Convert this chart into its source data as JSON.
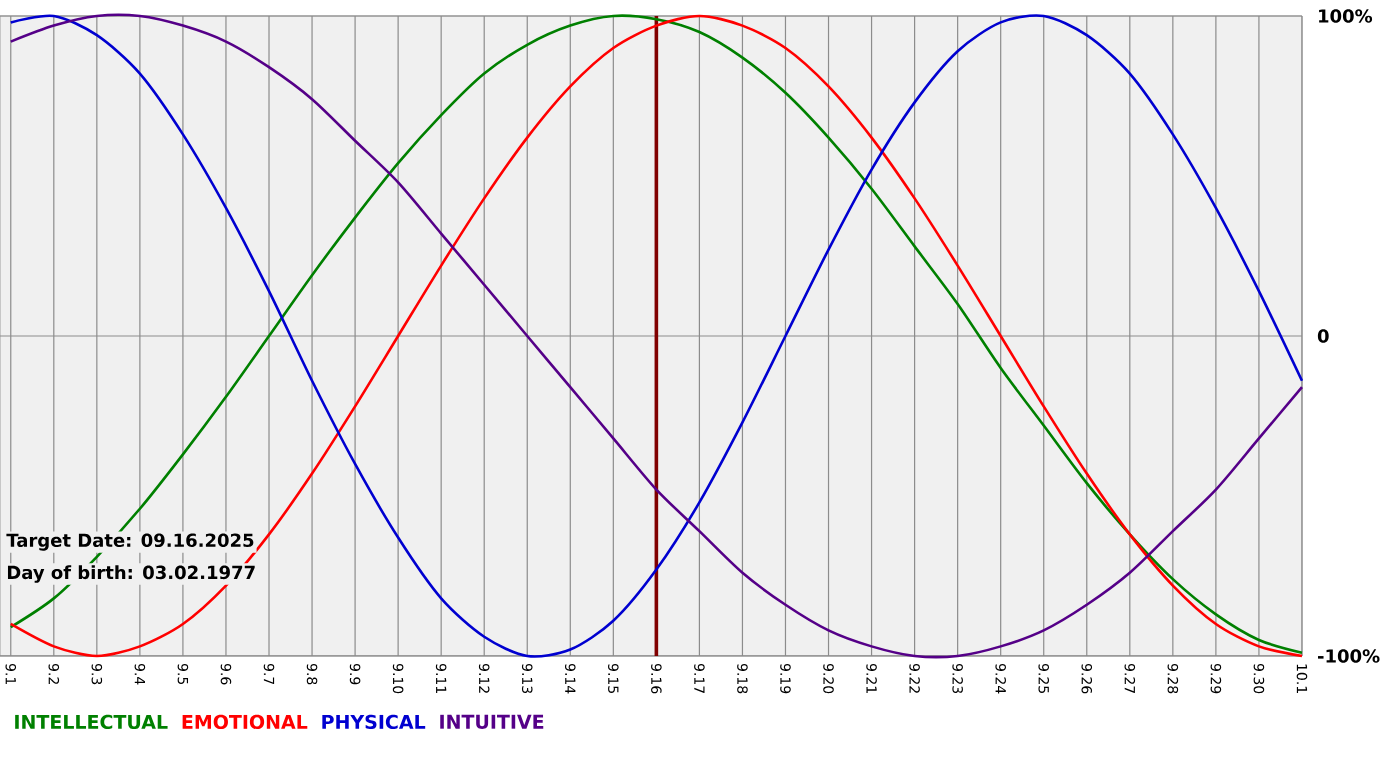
{
  "chart_data": {
    "type": "line",
    "categories": [
      "9.1",
      "9.2",
      "9.3",
      "9.4",
      "9.5",
      "9.6",
      "9.7",
      "9.8",
      "9.9",
      "9.10",
      "9.11",
      "9.12",
      "9.13",
      "9.14",
      "9.15",
      "9.16",
      "9.17",
      "9.18",
      "9.19",
      "9.20",
      "9.21",
      "9.22",
      "9.23",
      "9.24",
      "9.25",
      "9.26",
      "9.27",
      "9.28",
      "9.29",
      "9.30",
      "10.1"
    ],
    "series": [
      {
        "name": "INTELLECTUAL",
        "color": "#008000",
        "values": [
          -91,
          -82,
          -69,
          -54,
          -37,
          -19,
          0,
          19,
          37,
          54,
          69,
          82,
          91,
          97,
          100,
          99,
          95,
          87,
          76,
          62,
          46,
          28,
          10,
          -10,
          -28,
          -46,
          -62,
          -76,
          -87,
          -95,
          -99
        ]
      },
      {
        "name": "EMOTIONAL",
        "color": "#ff0000",
        "values": [
          -90,
          -97,
          -100,
          -97,
          -90,
          -78,
          -62,
          -43,
          -22,
          0,
          22,
          43,
          62,
          78,
          90,
          97,
          100,
          97,
          90,
          78,
          62,
          43,
          22,
          0,
          -22,
          -43,
          -62,
          -78,
          -90,
          -97,
          -100
        ]
      },
      {
        "name": "PHYSICAL",
        "color": "#0000d0",
        "values": [
          98,
          100,
          94,
          82,
          63,
          40,
          14,
          -14,
          -40,
          -63,
          -82,
          -94,
          -100,
          -98,
          -89,
          -73,
          -52,
          -27,
          0,
          27,
          52,
          73,
          89,
          98,
          100,
          94,
          82,
          63,
          40,
          14,
          -14
        ]
      },
      {
        "name": "INTUITIVE",
        "color": "#550088",
        "values": [
          92,
          97,
          100,
          100,
          97,
          92,
          84,
          74,
          61,
          48,
          32,
          16,
          0,
          -16,
          -32,
          -48,
          -61,
          -74,
          -84,
          -92,
          -97,
          -100,
          -100,
          -97,
          -92,
          -84,
          -74,
          -61,
          -48,
          -32,
          -16
        ]
      }
    ],
    "ylim": [
      -100,
      100
    ],
    "yticks": [
      {
        "value": 100,
        "label": "100%"
      },
      0,
      {
        "value": -100,
        "label": "-100%"
      }
    ],
    "ref_lines": [
      {
        "axis": "x",
        "value": "9.16",
        "color": "#800000"
      }
    ],
    "annotations": [
      "Target Date: 09.16.2025",
      "Day of birth: 03.02.1977"
    ],
    "grid": true,
    "legend": "bottom",
    "marker": "none"
  }
}
